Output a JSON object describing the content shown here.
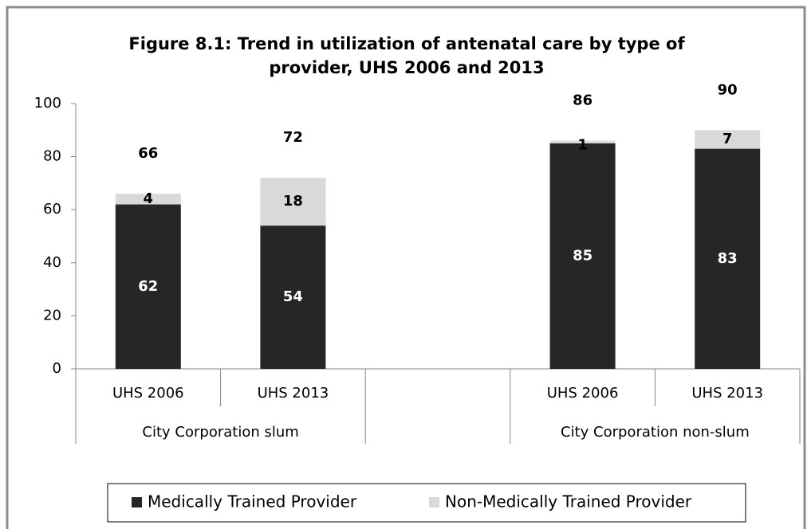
{
  "chart_data": {
    "type": "stacked_bar",
    "title": "Figure 8.1: Trend in utilization of antenatal care by type of provider, UHS 2006 and 2013",
    "categories": [
      "UHS 2006",
      "UHS 2013",
      null,
      "UHS 2006",
      "UHS 2013"
    ],
    "groups": [
      {
        "label": "City Corporation slum",
        "span": [
          0,
          2
        ]
      },
      {
        "label": "City Corporation non-slum",
        "span": [
          3,
          5
        ]
      }
    ],
    "series": [
      {
        "name": "Medically Trained Provider",
        "color": "#262626",
        "label_color": "#ffffff",
        "values": [
          62,
          54,
          null,
          85,
          83
        ]
      },
      {
        "name": "Non-Medically Trained Provider",
        "color": "#d9d9d9",
        "label_color": "#000000",
        "values": [
          4,
          18,
          null,
          1,
          7
        ]
      }
    ],
    "totals": [
      66,
      72,
      null,
      86,
      90
    ],
    "ylim": [
      0,
      100
    ],
    "yticks": [
      0,
      20,
      40,
      60,
      80,
      100
    ],
    "legend": "bottom"
  }
}
